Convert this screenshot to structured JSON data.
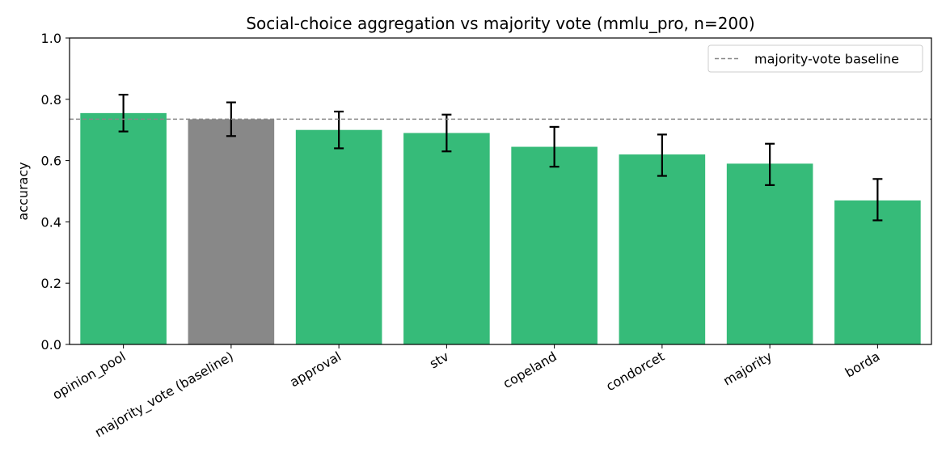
{
  "chart_data": {
    "type": "bar",
    "title": "Social-choice aggregation vs majority vote (mmlu_pro, n=200)",
    "xlabel": "",
    "ylabel": "accuracy",
    "ylim": [
      0,
      1.0
    ],
    "yticks": [
      "0.0",
      "0.2",
      "0.4",
      "0.6",
      "0.8",
      "1.0"
    ],
    "categories": [
      "opinion_pool",
      "majority_vote (baseline)",
      "approval",
      "stv",
      "copeland",
      "condorcet",
      "majority",
      "borda"
    ],
    "values": [
      0.755,
      0.735,
      0.7,
      0.69,
      0.645,
      0.62,
      0.59,
      0.47
    ],
    "error_low": [
      0.695,
      0.68,
      0.64,
      0.63,
      0.58,
      0.55,
      0.52,
      0.405
    ],
    "error_high": [
      0.815,
      0.79,
      0.76,
      0.75,
      0.71,
      0.685,
      0.655,
      0.54
    ],
    "bar_colors": [
      "#36bb79",
      "#888888",
      "#36bb79",
      "#36bb79",
      "#36bb79",
      "#36bb79",
      "#36bb79",
      "#36bb79"
    ],
    "baseline": {
      "value": 0.735,
      "label": "majority-vote baseline",
      "color": "#888888"
    },
    "legend_position": "top-right",
    "grid": false
  }
}
